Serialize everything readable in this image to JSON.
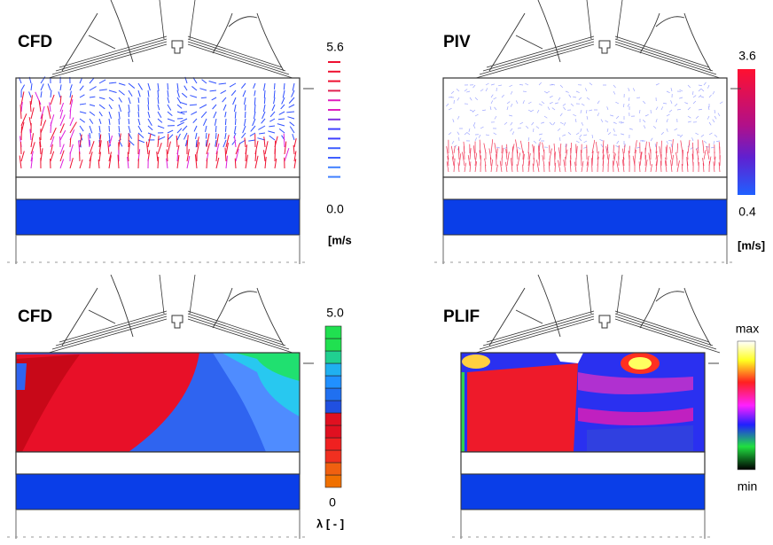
{
  "panels": [
    {
      "label": "CFD",
      "scale_max": "5.6",
      "scale_min": "0.0",
      "unit": "[m/s"
    },
    {
      "label": "PIV",
      "scale_max": "3.6",
      "scale_min": "0.4",
      "unit": "[m/s]"
    },
    {
      "label": "CFD",
      "scale_max": "5.0",
      "scale_min": "0",
      "unit": "λ [ - ]"
    },
    {
      "label": "PLIF",
      "scale_max": "max",
      "scale_min": "min"
    }
  ]
}
